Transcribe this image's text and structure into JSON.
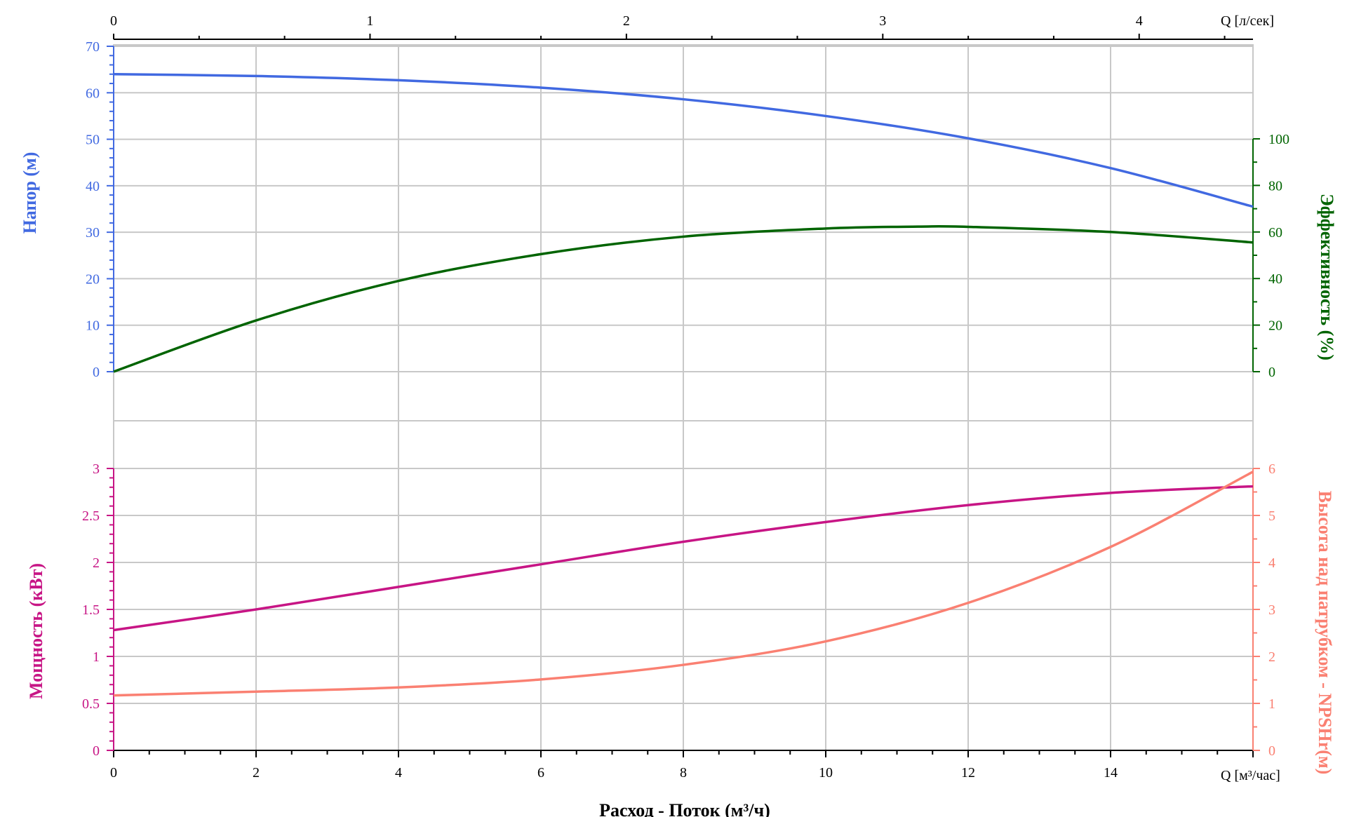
{
  "colors": {
    "head": "#4169e1",
    "efficiency": "#006400",
    "power": "#c71585",
    "npsh": "#fa8072",
    "grid": "#c8c8c8",
    "axis": "#000000"
  },
  "labels": {
    "top_unit": "Q [л/сек]",
    "bottom_unit": "Q [м³/час]",
    "x_title": "Расход - Поток (м³/ч)",
    "head_title": "Напор (м)",
    "eff_title": "Эффективность (%)",
    "power_title": "Мощность (кВт)",
    "npsh_title": "Высота над патрубком - NPSHr(м)"
  },
  "chart_data": {
    "type": "line",
    "x_axis": {
      "label": "Расход - Поток (м³/ч)",
      "unit": "Q [м³/час]",
      "range": [
        0,
        16
      ],
      "ticks": [
        "0",
        "2",
        "4",
        "6",
        "8",
        "10",
        "12",
        "14"
      ]
    },
    "x2_axis": {
      "unit": "Q [л/сек]",
      "range": [
        0,
        4.444
      ],
      "ticks": [
        "0",
        "1",
        "2",
        "3",
        "4"
      ]
    },
    "panels": [
      {
        "position": "top",
        "y_left": {
          "label": "Напор (м)",
          "range": [
            0,
            70
          ],
          "ticks": [
            "0",
            "10",
            "20",
            "30",
            "40",
            "50",
            "60",
            "70"
          ]
        },
        "y_right": {
          "label": "Эффективность (%)",
          "range": [
            0,
            100
          ],
          "ticks": [
            "0",
            "20",
            "40",
            "60",
            "80",
            "100"
          ]
        },
        "series": [
          {
            "key": "head",
            "axis": "left",
            "x": [
              0,
              2,
              4,
              6,
              8,
              10,
              12,
              14,
              16
            ],
            "y": [
              64,
              63.6,
              62.7,
              61.1,
              58.6,
              55,
              50.2,
              43.8,
              35.5
            ]
          },
          {
            "key": "efficiency",
            "axis": "right",
            "x": [
              0,
              2,
              4,
              6,
              8,
              10,
              11.3,
              12,
              14,
              16
            ],
            "y": [
              0,
              22,
              39,
              50.5,
              58,
              61.5,
              62.3,
              62.2,
              60,
              55.5
            ]
          }
        ]
      },
      {
        "position": "bottom",
        "y_left": {
          "label": "Мощность (кВт)",
          "range": [
            0,
            3
          ],
          "ticks": [
            "0",
            "0.5",
            "1",
            "1.5",
            "2",
            "2.5",
            "3"
          ]
        },
        "y_right": {
          "label": "Высота над патрубком - NPSHr(м)",
          "range": [
            0,
            6
          ],
          "ticks": [
            "0",
            "1",
            "2",
            "3",
            "4",
            "5",
            "6"
          ]
        },
        "series": [
          {
            "key": "power",
            "axis": "left",
            "x": [
              0,
              2,
              4,
              6,
              8,
              10,
              12,
              14,
              16
            ],
            "y": [
              1.28,
              1.5,
              1.74,
              1.98,
              2.22,
              2.43,
              2.61,
              2.74,
              2.81
            ]
          },
          {
            "key": "npsh",
            "axis": "right",
            "x": [
              0,
              2,
              4,
              6,
              8,
              10,
              12,
              14,
              16
            ],
            "y": [
              1.17,
              1.25,
              1.34,
              1.51,
              1.82,
              2.32,
              3.14,
              4.33,
              5.93
            ]
          }
        ]
      }
    ],
    "grid": true
  }
}
